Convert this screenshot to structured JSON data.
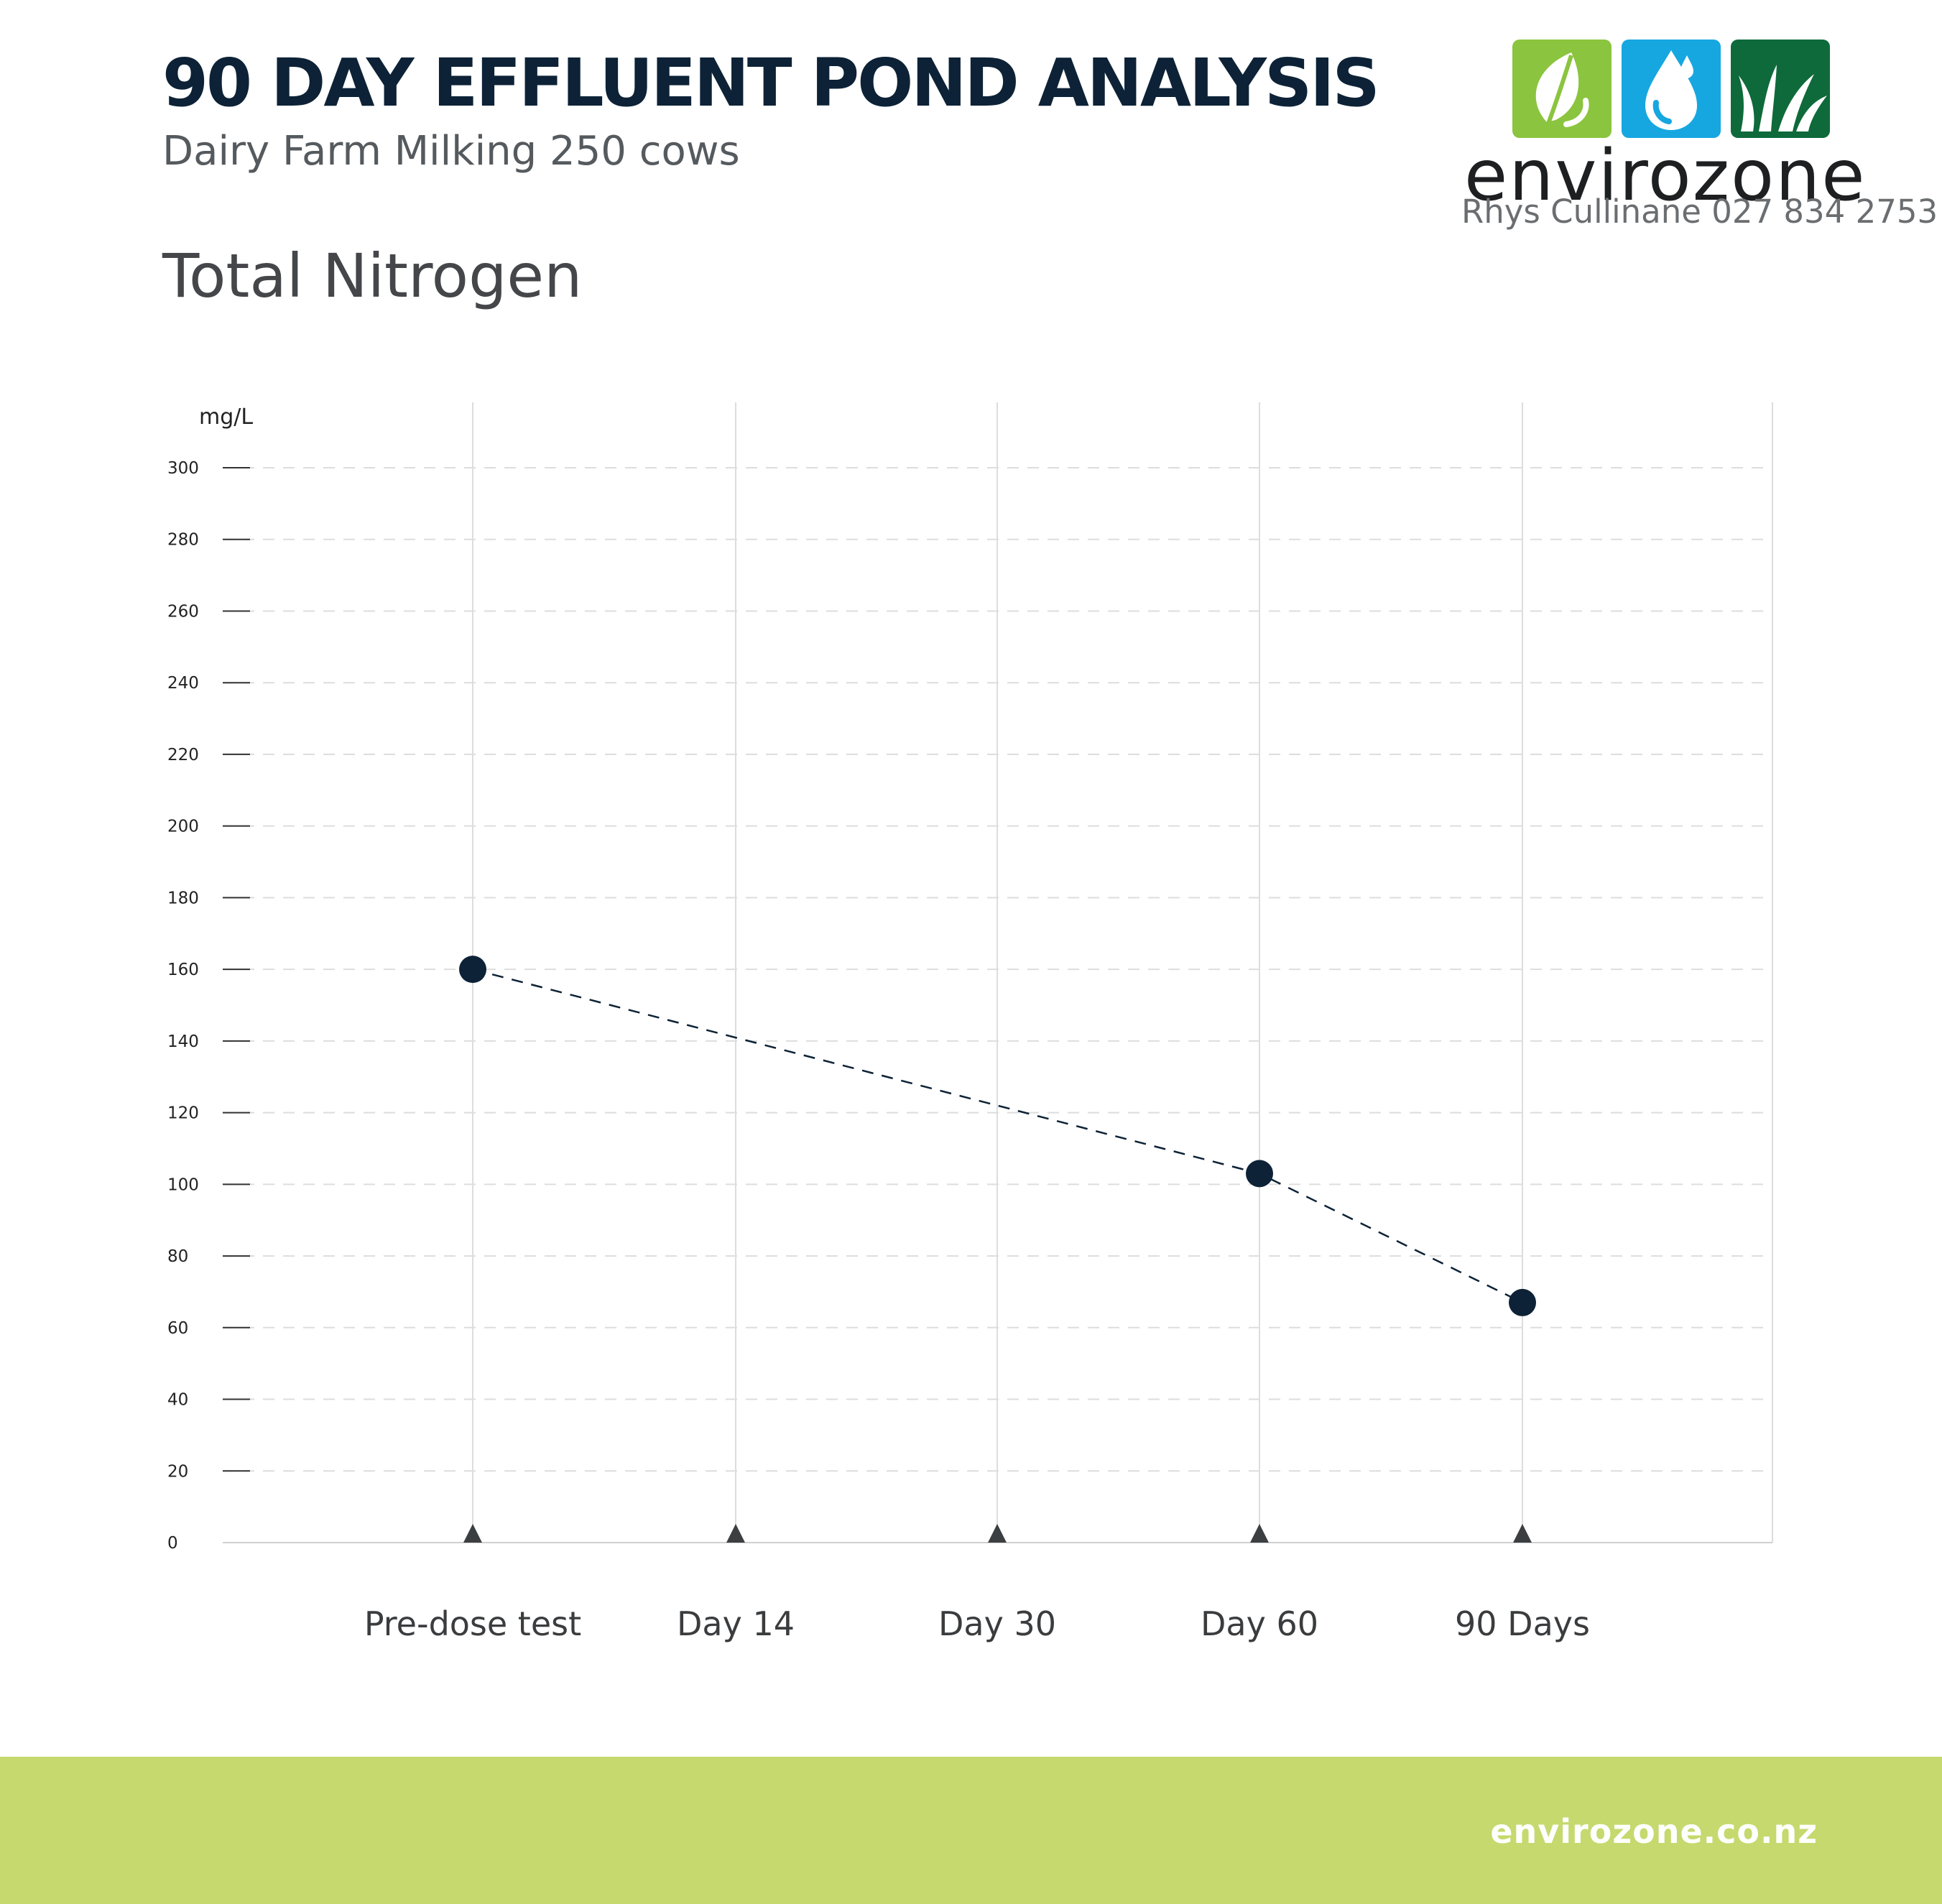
{
  "header": {
    "title": "90 DAY EFFLUENT POND ANALYSIS",
    "subtitle": "Dairy Farm Milking 250 cows",
    "section_title": "Total Nitrogen"
  },
  "logo": {
    "wordmark": "envirozone",
    "contact": "Rhys Cullinane  027 834 2753",
    "tile_colors": [
      "#8bc43f",
      "#16a7e0",
      "#0e6a3a"
    ],
    "tile_icons": [
      "leaf-icon",
      "water-drop-icon",
      "grass-icon"
    ]
  },
  "footer": {
    "url": "envirozone.co.nz",
    "background": "#c5d96e"
  },
  "colors": {
    "title": "#0d2236",
    "marker": "#0d2236",
    "axis_triangle": "#3c3f42",
    "gridline": "#dddddd"
  },
  "chart_data": {
    "type": "line",
    "ylabel": "mg/L",
    "ylim": [
      0,
      300
    ],
    "yticks": [
      0,
      20,
      40,
      60,
      80,
      100,
      120,
      140,
      160,
      180,
      200,
      220,
      240,
      260,
      280,
      300
    ],
    "categories": [
      "Pre-dose test",
      "Day 14",
      "Day 30",
      "Day 60",
      "90 Days"
    ],
    "series": [
      {
        "values": [
          160,
          null,
          null,
          103,
          67
        ],
        "line_style": "dashed",
        "marker": "filled-circle"
      }
    ],
    "grid": true
  }
}
